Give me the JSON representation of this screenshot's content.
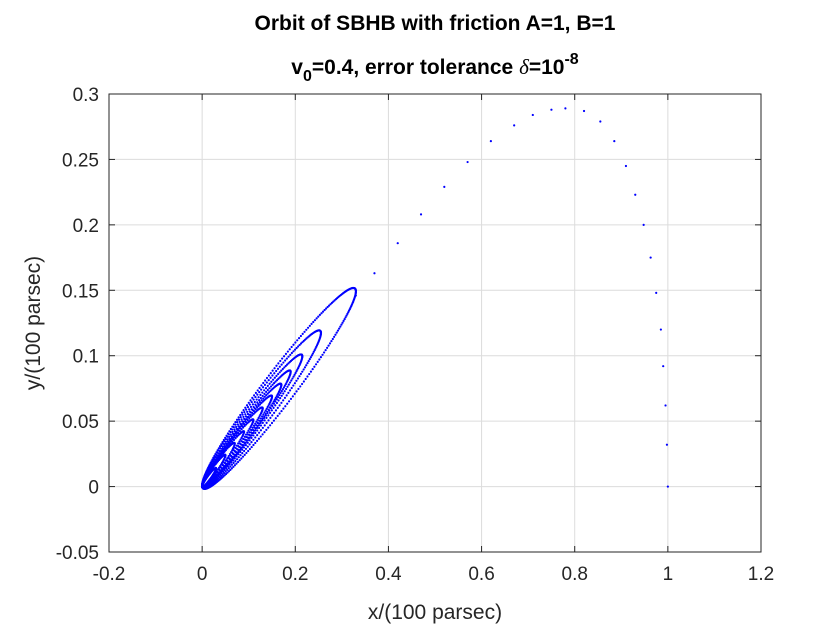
{
  "chart_data": {
    "type": "scatter",
    "title_line1": "Orbit of SBHB with friction A=1, B=1",
    "title_line2": {
      "v": "v",
      "v_sub": "0",
      "middle": "=0.4, error tolerance ",
      "delta": "δ",
      "eq": "=10",
      "exp": "-8"
    },
    "xlabel": "x/(100 parsec)",
    "ylabel": "y/(100 parsec)",
    "xlim": [
      -0.2,
      1.2
    ],
    "ylim": [
      -0.05,
      0.3
    ],
    "x_ticks": [
      -0.2,
      0,
      0.2,
      0.4,
      0.6,
      0.8,
      1,
      1.2
    ],
    "x_tick_labels": [
      "-0.2",
      "0",
      "0.2",
      "0.4",
      "0.6",
      "0.8",
      "1",
      "1.2"
    ],
    "y_ticks": [
      -0.05,
      0,
      0.05,
      0.1,
      0.15,
      0.2,
      0.25,
      0.3
    ],
    "y_tick_labels": [
      "-0.05",
      "0",
      "0.05",
      "0.1",
      "0.15",
      "0.2",
      "0.25",
      "0.3"
    ],
    "grid": true,
    "series": [
      {
        "name": "orbit",
        "color": "#0000ff",
        "marker": "dot",
        "description_of_shape": "spiral orbit starting at (1,0), arcing up to about (0.75,0.289), then decaying into a narrow ellipse oriented toward the origin",
        "initial_arc": {
          "x": [
            1.0,
            0.998,
            0.995,
            0.99,
            0.985,
            0.975,
            0.963,
            0.948,
            0.93,
            0.91,
            0.885,
            0.855,
            0.82,
            0.78,
            0.75,
            0.71,
            0.67,
            0.62,
            0.57,
            0.52,
            0.47,
            0.42,
            0.37,
            0.33
          ],
          "y": [
            0.0,
            0.032,
            0.062,
            0.092,
            0.12,
            0.148,
            0.175,
            0.2,
            0.223,
            0.245,
            0.264,
            0.279,
            0.287,
            0.289,
            0.288,
            0.284,
            0.276,
            0.264,
            0.248,
            0.229,
            0.208,
            0.186,
            0.163,
            0.146
          ]
        },
        "loops": [
          {
            "apex_x": 0.33,
            "apex_y": 0.15,
            "half_width": 0.018
          },
          {
            "apex_x": 0.255,
            "apex_y": 0.118,
            "half_width": 0.014
          },
          {
            "apex_x": 0.215,
            "apex_y": 0.1,
            "half_width": 0.011
          },
          {
            "apex_x": 0.19,
            "apex_y": 0.088,
            "half_width": 0.009
          },
          {
            "apex_x": 0.17,
            "apex_y": 0.078,
            "half_width": 0.008
          },
          {
            "apex_x": 0.15,
            "apex_y": 0.069,
            "half_width": 0.007
          },
          {
            "apex_x": 0.13,
            "apex_y": 0.06,
            "half_width": 0.006
          },
          {
            "apex_x": 0.11,
            "apex_y": 0.051,
            "half_width": 0.005
          },
          {
            "apex_x": 0.09,
            "apex_y": 0.042,
            "half_width": 0.004
          },
          {
            "apex_x": 0.07,
            "apex_y": 0.033,
            "half_width": 0.004
          },
          {
            "apex_x": 0.05,
            "apex_y": 0.024,
            "half_width": 0.003
          },
          {
            "apex_x": 0.03,
            "apex_y": 0.014,
            "half_width": 0.002
          }
        ]
      }
    ]
  }
}
